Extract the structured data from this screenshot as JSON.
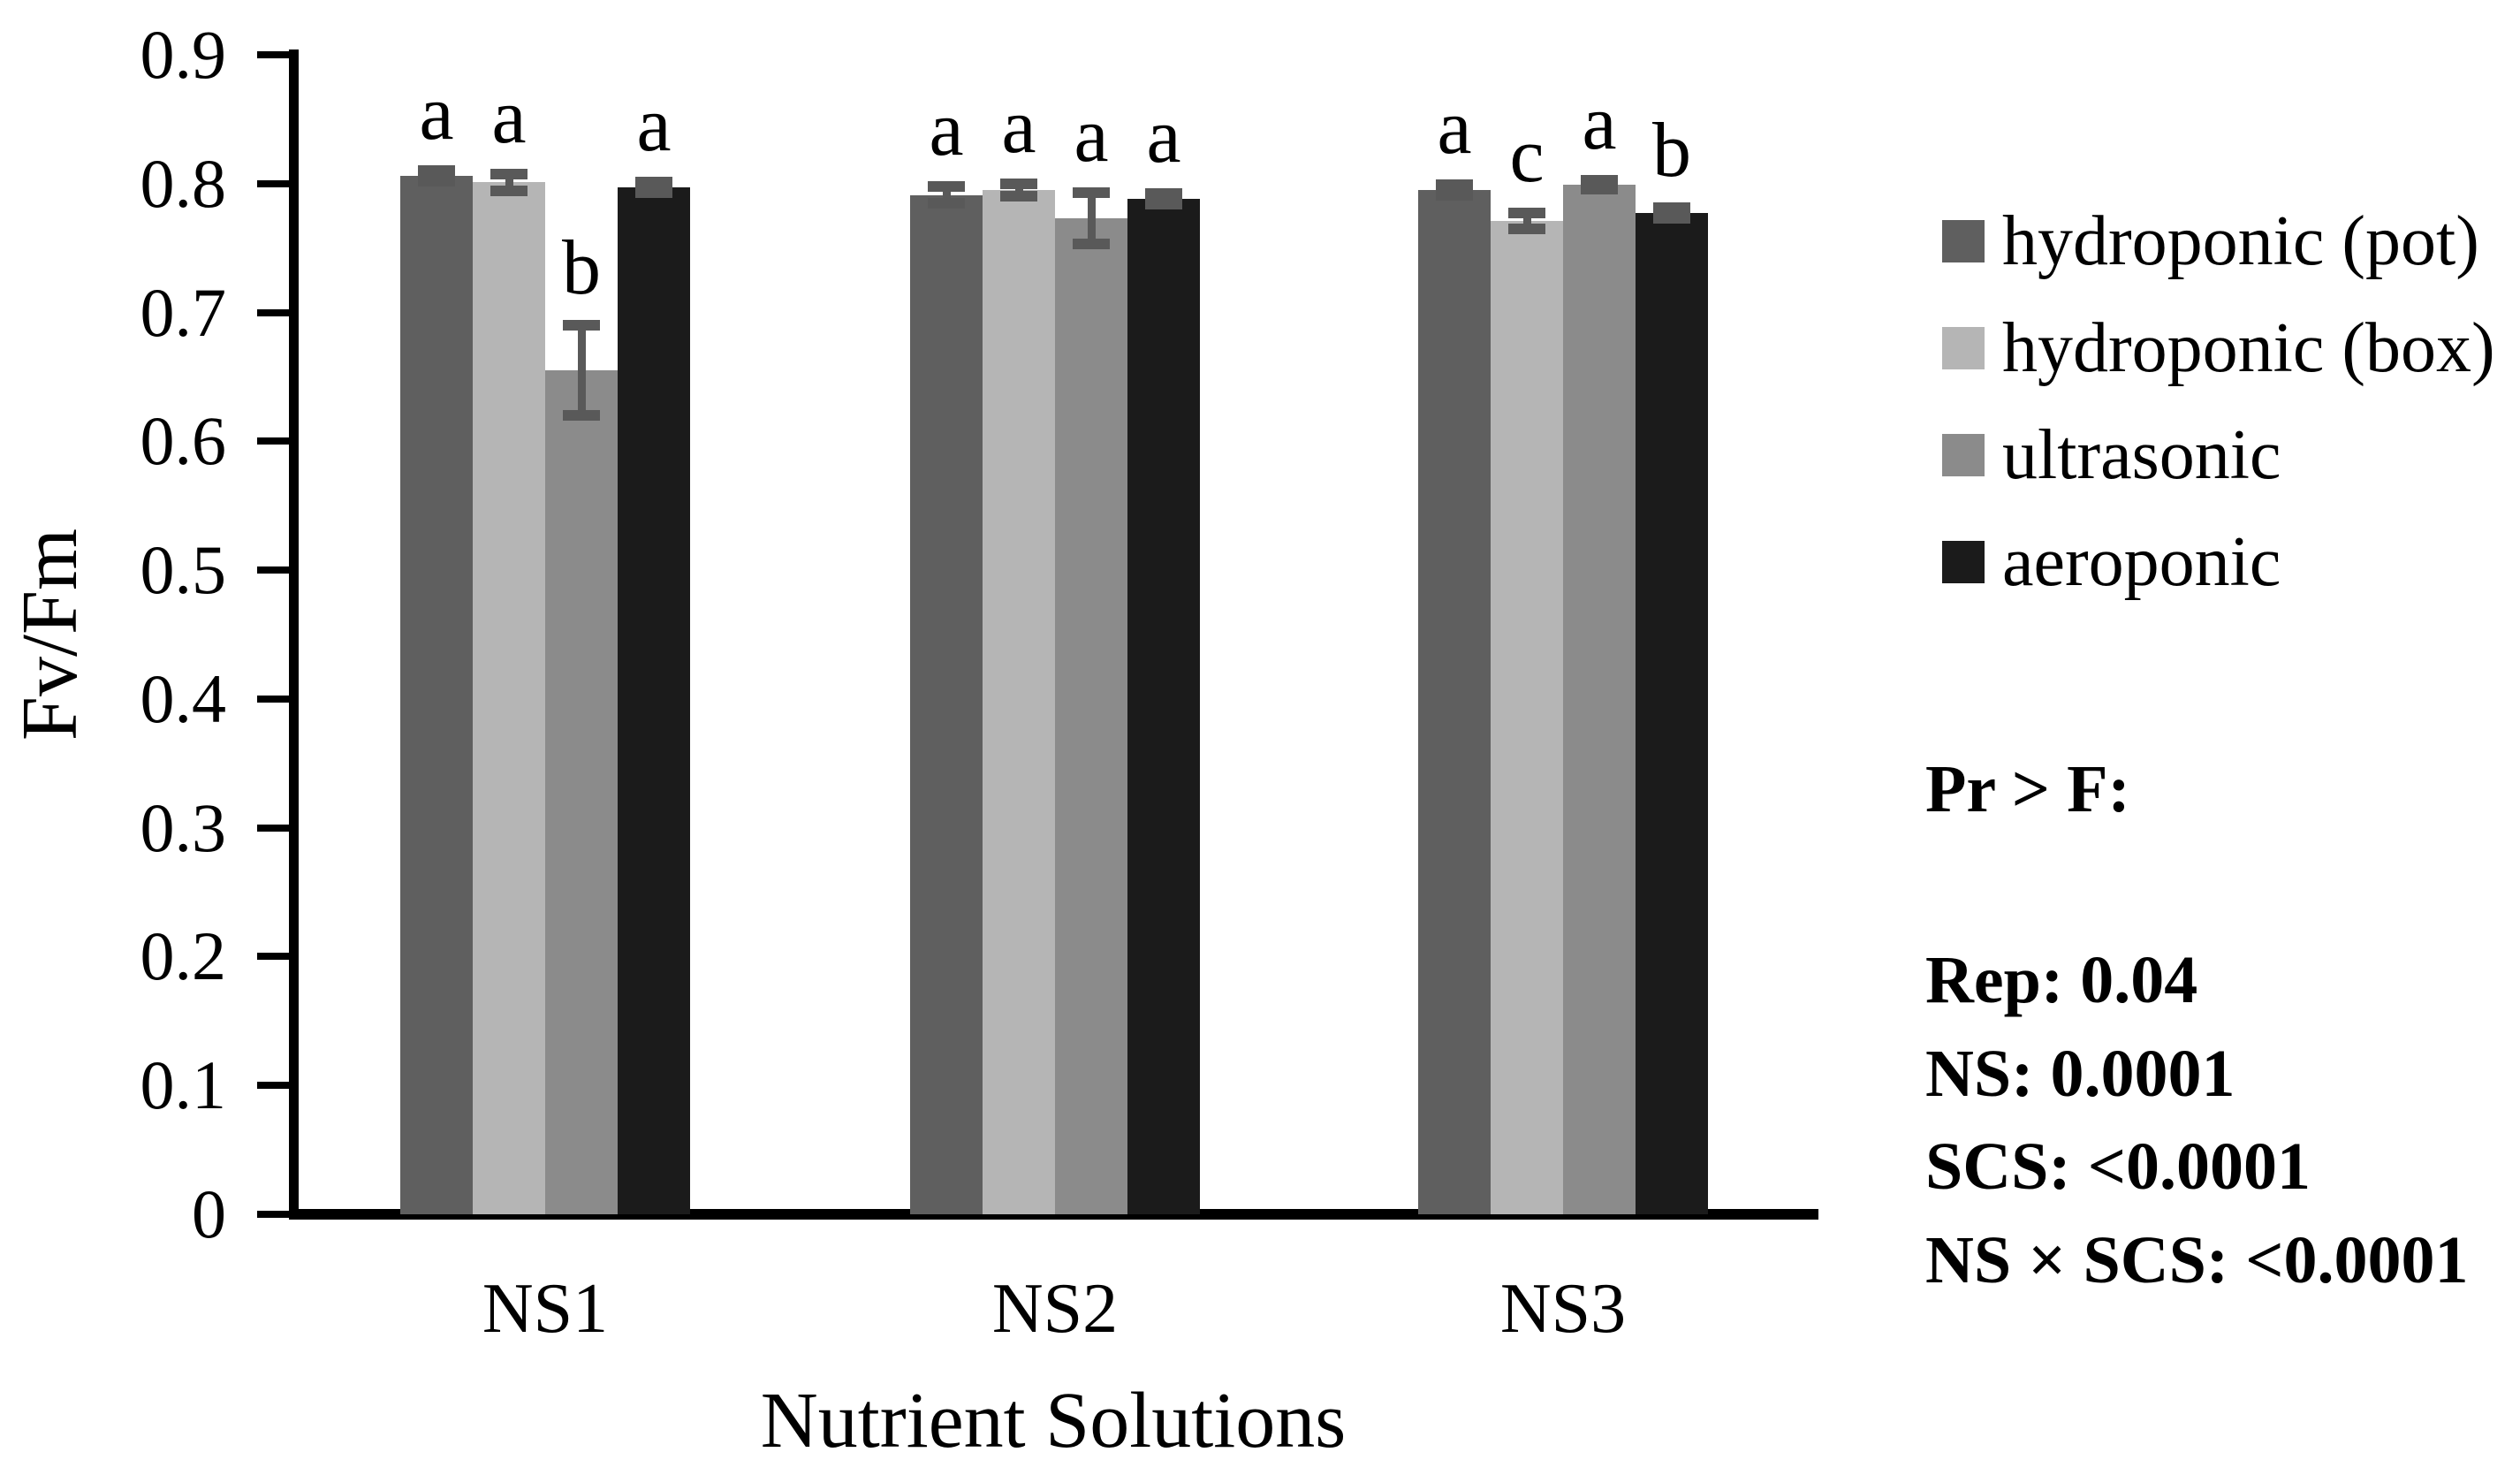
{
  "figure": {
    "background": "#ffffff",
    "text_color": "#000000"
  },
  "chart_data": {
    "type": "bar",
    "title": "",
    "xlabel": "Nutrient Solutions",
    "ylabel": "Fv/Fm",
    "ylim": [
      0,
      0.9
    ],
    "grid": false,
    "legend_position": "right",
    "ytick_labels": [
      "0.9",
      "0.8",
      "0.7",
      "0.6",
      "0.5",
      "0.4",
      "0.3",
      "0.2",
      "0.1",
      "0"
    ],
    "categories": [
      "NS1",
      "NS2",
      "NS3"
    ],
    "series": [
      {
        "name": "hydroponic (pot)",
        "color": "#5f5f5f",
        "values": [
          0.806,
          0.791,
          0.795
        ],
        "errors": [
          0.004,
          0.0065,
          0.004
        ],
        "letters": [
          "a",
          "a",
          "a"
        ]
      },
      {
        "name": "hydroponic (box)",
        "color": "#b5b5b5",
        "values": [
          0.801,
          0.795,
          0.771
        ],
        "errors": [
          0.0065,
          0.005,
          0.006
        ],
        "letters": [
          "a",
          "a",
          "c"
        ]
      },
      {
        "name": "ultrasonic",
        "color": "#8b8b8b",
        "values": [
          0.655,
          0.773,
          0.799
        ],
        "errors": [
          0.035,
          0.02,
          0.0035
        ],
        "letters": [
          "b",
          "a",
          "a"
        ]
      },
      {
        "name": "aeroponic",
        "color": "#1b1b1b",
        "values": [
          0.797,
          0.788,
          0.777
        ],
        "errors": [
          0.004,
          0.004,
          0.004
        ],
        "letters": [
          "a",
          "a",
          "b"
        ]
      }
    ],
    "error_bar_color": "#595959"
  },
  "stats_panel": {
    "heading": "Pr > F:",
    "lines": [
      "Rep: 0.04",
      "NS: 0.0001",
      "SCS: <0.0001",
      "NS × SCS: <0.0001"
    ]
  }
}
